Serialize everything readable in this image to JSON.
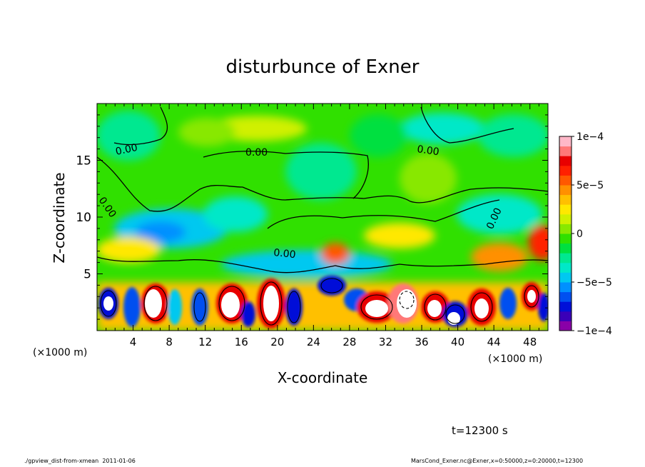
{
  "chart_data": {
    "type": "heatmap",
    "title": "disturbunce of Exner",
    "xlabel": "X-coordinate",
    "ylabel": "Z-coordinate",
    "x_unit": "(×1000 m)",
    "y_unit": "(×1000 m)",
    "xlim": [
      0,
      50
    ],
    "ylim": [
      0,
      20
    ],
    "x_ticks": [
      "4",
      "8",
      "12",
      "16",
      "20",
      "24",
      "28",
      "32",
      "36",
      "40",
      "44",
      "48"
    ],
    "y_ticks": [
      "5",
      "10",
      "15"
    ],
    "contour_label": "0.00",
    "colorbar": {
      "range": [
        -0.0001,
        0.0001
      ],
      "tick_labels": [
        "1e−4",
        "5e−5",
        "0",
        "−5e−5",
        "−1e−4"
      ],
      "colors": [
        "#8a00a8",
        "#3a00b8",
        "#0010d8",
        "#0050f0",
        "#0090ff",
        "#00c8f0",
        "#00e8c8",
        "#00e890",
        "#00e040",
        "#30e000",
        "#88e800",
        "#d0f000",
        "#ffe800",
        "#ffc000",
        "#ff9000",
        "#ff5800",
        "#ff2000",
        "#e80000",
        "#ff7878",
        "#ffb8c8"
      ]
    },
    "fields": {
      "upper_layer_value": "0",
      "mid_layer_value": "-5e-5",
      "near_surface": "alternating cells between -1e-4 and 1e-4"
    }
  },
  "annotation": {
    "time": "t=12300 s"
  },
  "footer": {
    "left": "./gpview_dist-from-xmean  2011-01-06",
    "right": "MarsCond_Exner.nc@Exner,x=0:50000,z=0:20000,t=12300"
  }
}
